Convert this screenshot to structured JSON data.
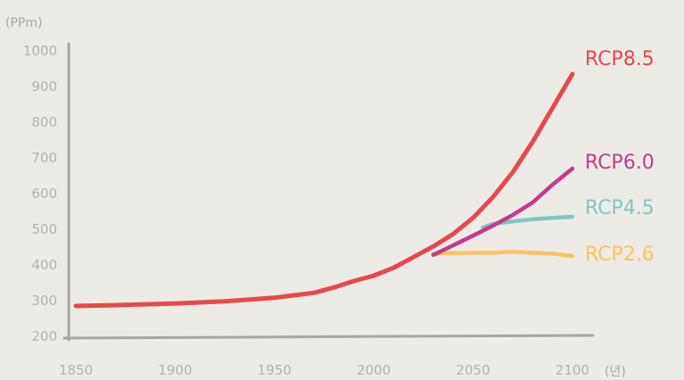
{
  "chart_data": {
    "type": "line",
    "y_unit_label": "(PPm)",
    "x_unit_label": "(년)",
    "xlim": [
      1850,
      2100
    ],
    "ylim": [
      200,
      1000
    ],
    "x_ticks": [
      "1850",
      "1900",
      "1950",
      "2000",
      "2050",
      "2100"
    ],
    "y_ticks": [
      "200",
      "300",
      "400",
      "500",
      "600",
      "700",
      "800",
      "900",
      "1000"
    ],
    "grid": false,
    "colors": {
      "axis": "#a9a6a1",
      "rcp85": "#e8474c",
      "rcp60": "#c43a8c",
      "rcp45": "#7fc6c4",
      "rcp26": "#fbc15e"
    },
    "series": [
      {
        "name": "RCP8.5",
        "color": "#e8474c",
        "x": [
          1850,
          1875,
          1900,
          1925,
          1950,
          1960,
          1970,
          1980,
          1990,
          2000,
          2010,
          2020,
          2030,
          2040,
          2050,
          2060,
          2070,
          2080,
          2090,
          2100
        ],
        "values": [
          285,
          288,
          292,
          298,
          308,
          315,
          322,
          337,
          355,
          370,
          392,
          422,
          452,
          487,
          532,
          590,
          660,
          745,
          840,
          935
        ]
      },
      {
        "name": "RCP6.0",
        "color": "#c43a8c",
        "x": [
          2030,
          2040,
          2050,
          2060,
          2070,
          2080,
          2090,
          2100
        ],
        "values": [
          428,
          455,
          482,
          510,
          540,
          575,
          625,
          670
        ]
      },
      {
        "name": "RCP4.5",
        "color": "#7fc6c4",
        "x": [
          2055,
          2060,
          2070,
          2080,
          2090,
          2100
        ],
        "values": [
          505,
          515,
          522,
          528,
          532,
          535
        ]
      },
      {
        "name": "RCP2.6",
        "color": "#fbc15e",
        "x": [
          2030,
          2040,
          2050,
          2060,
          2070,
          2080,
          2090,
          2100
        ],
        "values": [
          432,
          433,
          434,
          434,
          437,
          434,
          432,
          425
        ]
      }
    ]
  }
}
